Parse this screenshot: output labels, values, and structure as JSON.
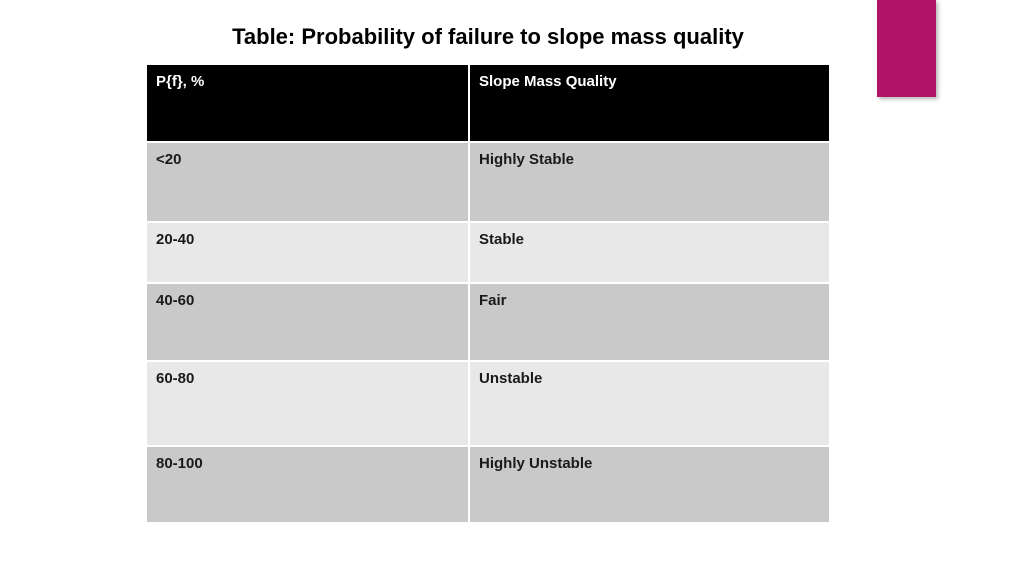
{
  "slide": {
    "title": "Table: Probability of failure to slope mass quality"
  },
  "table": {
    "columns": [
      "P{f}, %",
      "Slope Mass Quality"
    ],
    "rows": [
      {
        "pf": "<20",
        "quality": "Highly Stable"
      },
      {
        "pf": "20-40",
        "quality": "Stable"
      },
      {
        "pf": "40-60",
        "quality": "Fair"
      },
      {
        "pf": "60-80",
        "quality": "Unstable"
      },
      {
        "pf": "80-100",
        "quality": "Highly Unstable"
      }
    ]
  },
  "colors": {
    "accent": "#b01466",
    "header_bg": "#000000",
    "header_text": "#ffffff",
    "row_dark": "#c9c9c9",
    "row_light": "#e8e8e8",
    "text": "#1a1a1a",
    "background": "#ffffff"
  }
}
